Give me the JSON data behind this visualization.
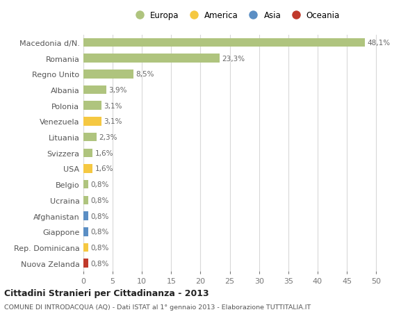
{
  "categories": [
    "Nuova Zelanda",
    "Rep. Dominicana",
    "Giappone",
    "Afghanistan",
    "Ucraina",
    "Belgio",
    "USA",
    "Svizzera",
    "Lituania",
    "Venezuela",
    "Polonia",
    "Albania",
    "Regno Unito",
    "Romania",
    "Macedonia d/N."
  ],
  "values": [
    0.8,
    0.8,
    0.8,
    0.8,
    0.8,
    0.8,
    1.6,
    1.6,
    2.3,
    3.1,
    3.1,
    3.9,
    8.5,
    23.3,
    48.1
  ],
  "colors": [
    "#c0392b",
    "#f5c842",
    "#5b8ec4",
    "#5b8ec4",
    "#afc47e",
    "#afc47e",
    "#f5c842",
    "#afc47e",
    "#afc47e",
    "#f5c842",
    "#afc47e",
    "#afc47e",
    "#afc47e",
    "#afc47e",
    "#afc47e"
  ],
  "labels": [
    "0,8%",
    "0,8%",
    "0,8%",
    "0,8%",
    "0,8%",
    "0,8%",
    "1,6%",
    "1,6%",
    "2,3%",
    "3,1%",
    "3,1%",
    "3,9%",
    "8,5%",
    "23,3%",
    "48,1%"
  ],
  "legend_labels": [
    "Europa",
    "America",
    "Asia",
    "Oceania"
  ],
  "legend_colors": [
    "#afc47e",
    "#f5c842",
    "#5b8ec4",
    "#c0392b"
  ],
  "title": "Cittadini Stranieri per Cittadinanza - 2013",
  "subtitle": "COMUNE DI INTRODACQUA (AQ) - Dati ISTAT al 1° gennaio 2013 - Elaborazione TUTTITALIA.IT",
  "xlim": [
    0,
    52
  ],
  "xticks": [
    0,
    5,
    10,
    15,
    20,
    25,
    30,
    35,
    40,
    45,
    50
  ],
  "background_color": "#ffffff",
  "grid_color": "#d8d8d8"
}
